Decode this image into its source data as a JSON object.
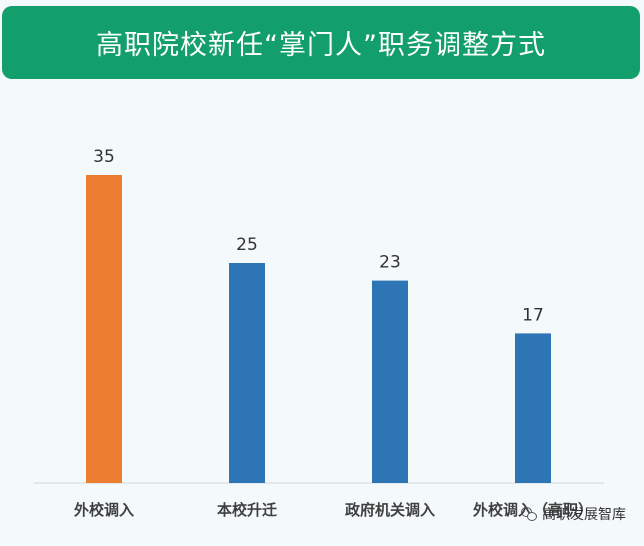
{
  "header": {
    "title": "高职院校新任“掌门人”职务调整方式"
  },
  "chart_data": {
    "type": "bar",
    "categories": [
      "外校调入",
      "本校升迁",
      "政府机关调入",
      "外校调入（高职）"
    ],
    "values": [
      35,
      25,
      23,
      17
    ],
    "data_labels": [
      "35",
      "25",
      "23",
      "17"
    ],
    "colors": [
      "#ed7d31",
      "#2e75b6",
      "#2e75b6",
      "#2e75b6"
    ],
    "ylim": [
      0,
      40
    ],
    "grid": false,
    "legend": "none"
  },
  "watermark": {
    "text": "高职发展智库"
  }
}
